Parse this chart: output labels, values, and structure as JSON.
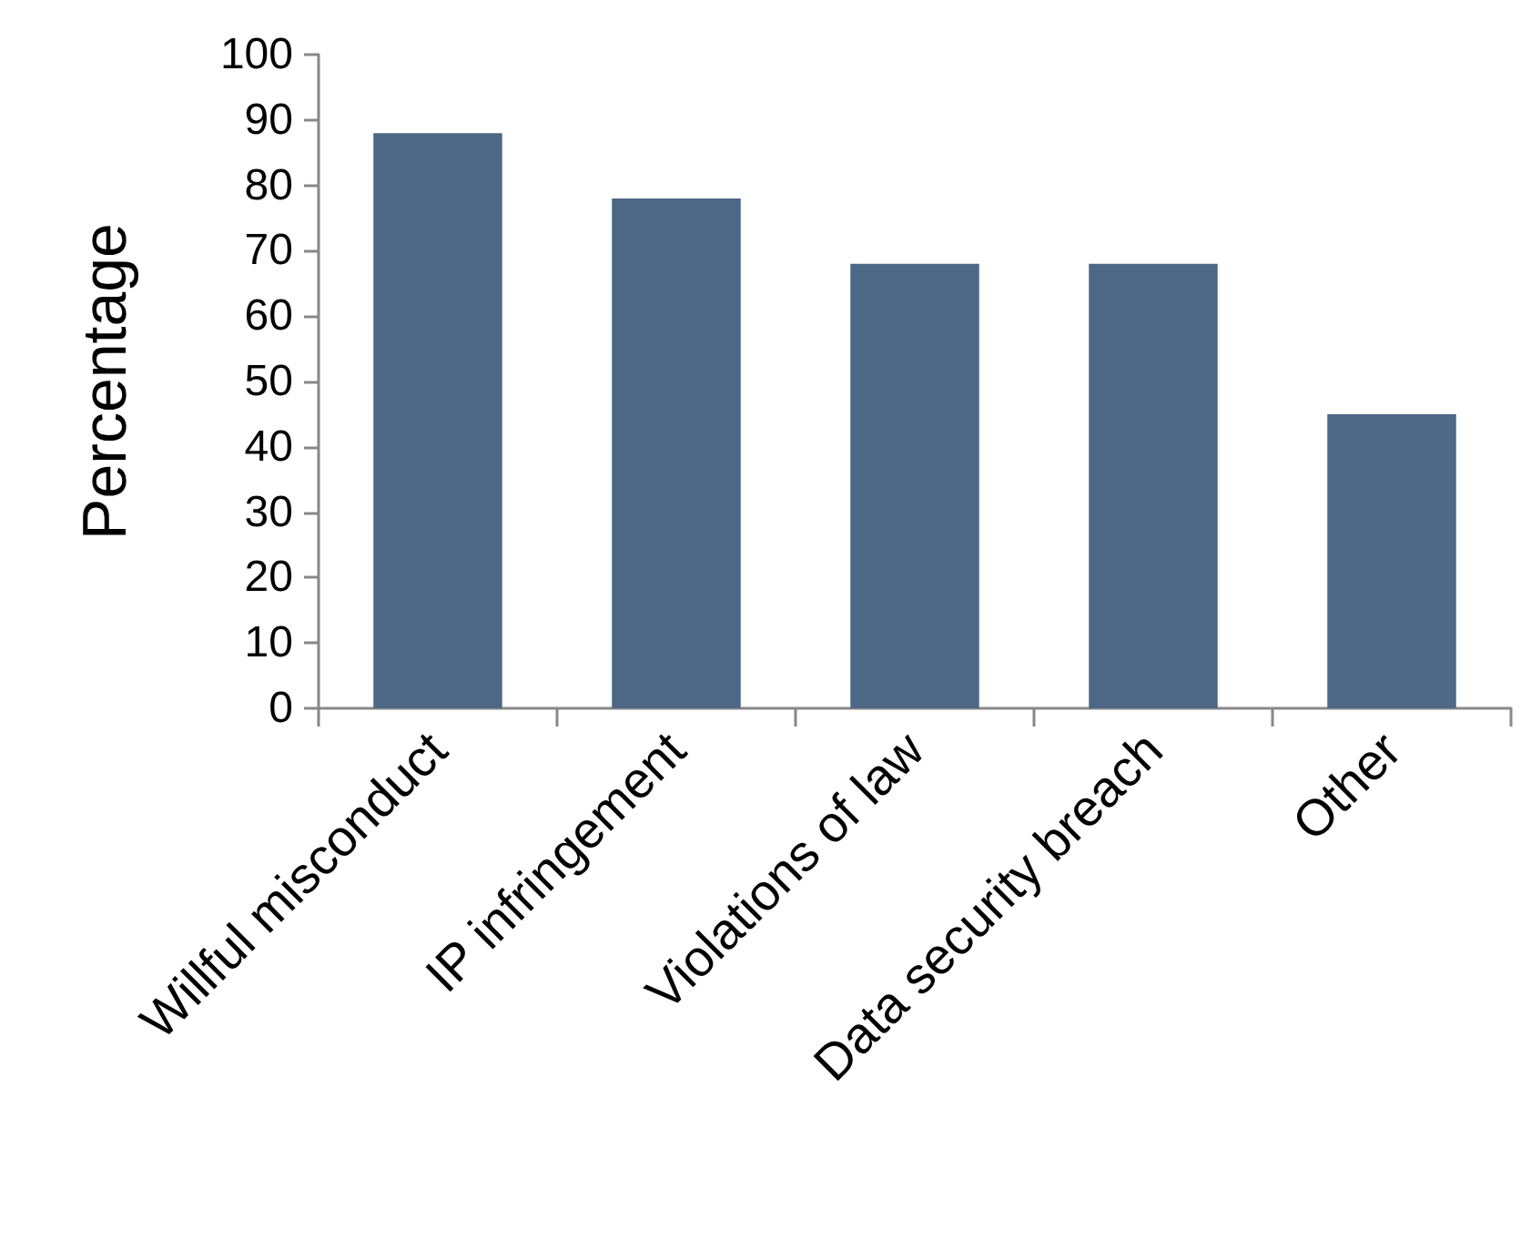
{
  "chart_data": {
    "type": "bar",
    "ylabel": "Percentage",
    "categories": [
      "Willful misconduct",
      "IP infringement",
      "Violations of law",
      "Data security breach",
      "Other"
    ],
    "values": [
      88,
      78,
      68,
      68,
      45
    ],
    "color": "#4d6787",
    "ylim": [
      0,
      100
    ],
    "yticks": [
      0,
      10,
      20,
      30,
      40,
      50,
      60,
      70,
      80,
      90,
      100
    ],
    "grid": false
  }
}
